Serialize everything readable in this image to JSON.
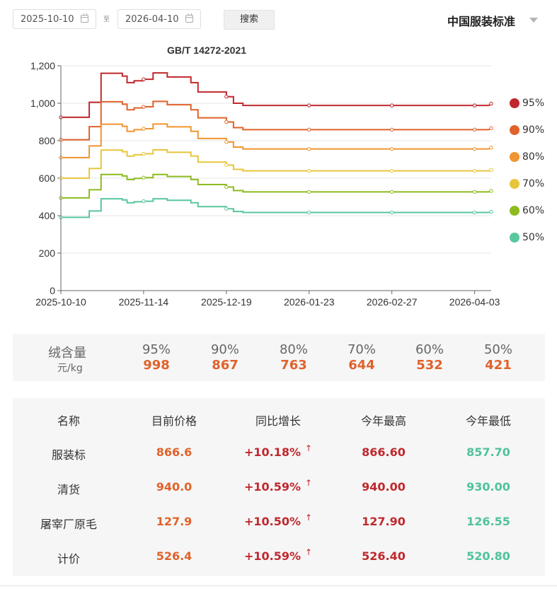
{
  "toolbar": {
    "start_date": "2025-10-10",
    "end_date": "2026-04-10",
    "separator": "至",
    "search_label": "搜索",
    "standard_select": "中国服装标准"
  },
  "chart_data": {
    "type": "line",
    "title": "GB/T 14272-2021",
    "x_tick_labels": [
      "2025-10-10",
      "2025-11-14",
      "2025-12-19",
      "2026-01-23",
      "2026-02-27",
      "2026-04-03"
    ],
    "x_range": [
      "2025-10-10",
      "2026-04-10"
    ],
    "y_tick_labels": [
      "0",
      "200",
      "400",
      "600",
      "800",
      "1,000",
      "1,200"
    ],
    "ylim": [
      0,
      1200
    ],
    "legend_position": "right",
    "grid": true,
    "series": [
      {
        "name": "95%",
        "color": "#c0282d",
        "points": [
          [
            "2025-10-10",
            925
          ],
          [
            "2025-10-22",
            925
          ],
          [
            "2025-10-22",
            1005
          ],
          [
            "2025-10-27",
            1005
          ],
          [
            "2025-10-27",
            1160
          ],
          [
            "2025-11-05",
            1160
          ],
          [
            "2025-11-05",
            1145
          ],
          [
            "2025-11-07",
            1145
          ],
          [
            "2025-11-07",
            1110
          ],
          [
            "2025-11-10",
            1110
          ],
          [
            "2025-11-10",
            1120
          ],
          [
            "2025-11-14",
            1120
          ],
          [
            "2025-11-14",
            1128
          ],
          [
            "2025-11-18",
            1128
          ],
          [
            "2025-11-18",
            1162
          ],
          [
            "2025-11-24",
            1162
          ],
          [
            "2025-11-24",
            1140
          ],
          [
            "2025-12-04",
            1140
          ],
          [
            "2025-12-04",
            1110
          ],
          [
            "2025-12-07",
            1110
          ],
          [
            "2025-12-07",
            1060
          ],
          [
            "2025-12-19",
            1060
          ],
          [
            "2025-12-19",
            1035
          ],
          [
            "2025-12-22",
            1035
          ],
          [
            "2025-12-22",
            1000
          ],
          [
            "2025-12-26",
            1000
          ],
          [
            "2025-12-26",
            988
          ],
          [
            "2026-04-09",
            988
          ],
          [
            "2026-04-10",
            998
          ]
        ]
      },
      {
        "name": "90%",
        "color": "#e0622b",
        "points": [
          [
            "2025-10-10",
            805
          ],
          [
            "2025-10-22",
            805
          ],
          [
            "2025-10-22",
            875
          ],
          [
            "2025-10-27",
            875
          ],
          [
            "2025-10-27",
            1008
          ],
          [
            "2025-11-05",
            1008
          ],
          [
            "2025-11-05",
            995
          ],
          [
            "2025-11-07",
            995
          ],
          [
            "2025-11-07",
            965
          ],
          [
            "2025-11-10",
            965
          ],
          [
            "2025-11-10",
            975
          ],
          [
            "2025-11-14",
            975
          ],
          [
            "2025-11-14",
            981
          ],
          [
            "2025-11-18",
            981
          ],
          [
            "2025-11-18",
            1010
          ],
          [
            "2025-11-24",
            1010
          ],
          [
            "2025-11-24",
            992
          ],
          [
            "2025-12-04",
            992
          ],
          [
            "2025-12-04",
            965
          ],
          [
            "2025-12-07",
            965
          ],
          [
            "2025-12-07",
            922
          ],
          [
            "2025-12-19",
            922
          ],
          [
            "2025-12-19",
            900
          ],
          [
            "2025-12-22",
            900
          ],
          [
            "2025-12-22",
            870
          ],
          [
            "2025-12-26",
            870
          ],
          [
            "2025-12-26",
            859
          ],
          [
            "2026-04-09",
            859
          ],
          [
            "2026-04-10",
            867
          ]
        ]
      },
      {
        "name": "80%",
        "color": "#f0952f",
        "points": [
          [
            "2025-10-10",
            710
          ],
          [
            "2025-10-22",
            710
          ],
          [
            "2025-10-22",
            772
          ],
          [
            "2025-10-27",
            772
          ],
          [
            "2025-10-27",
            888
          ],
          [
            "2025-11-05",
            888
          ],
          [
            "2025-11-05",
            877
          ],
          [
            "2025-11-07",
            877
          ],
          [
            "2025-11-07",
            850
          ],
          [
            "2025-11-10",
            850
          ],
          [
            "2025-11-10",
            859
          ],
          [
            "2025-11-14",
            859
          ],
          [
            "2025-11-14",
            864
          ],
          [
            "2025-11-18",
            864
          ],
          [
            "2025-11-18",
            889
          ],
          [
            "2025-11-24",
            889
          ],
          [
            "2025-11-24",
            874
          ],
          [
            "2025-12-04",
            874
          ],
          [
            "2025-12-04",
            850
          ],
          [
            "2025-12-07",
            850
          ],
          [
            "2025-12-07",
            812
          ],
          [
            "2025-12-19",
            812
          ],
          [
            "2025-12-19",
            793
          ],
          [
            "2025-12-22",
            793
          ],
          [
            "2025-12-22",
            766
          ],
          [
            "2025-12-26",
            766
          ],
          [
            "2025-12-26",
            756
          ],
          [
            "2026-04-09",
            756
          ],
          [
            "2026-04-10",
            763
          ]
        ]
      },
      {
        "name": "70%",
        "color": "#e8c53a",
        "points": [
          [
            "2025-10-10",
            600
          ],
          [
            "2025-10-22",
            600
          ],
          [
            "2025-10-22",
            652
          ],
          [
            "2025-10-27",
            652
          ],
          [
            "2025-10-27",
            750
          ],
          [
            "2025-11-05",
            750
          ],
          [
            "2025-11-05",
            741
          ],
          [
            "2025-11-07",
            741
          ],
          [
            "2025-11-07",
            718
          ],
          [
            "2025-11-10",
            718
          ],
          [
            "2025-11-10",
            725
          ],
          [
            "2025-11-14",
            725
          ],
          [
            "2025-11-14",
            730
          ],
          [
            "2025-11-18",
            730
          ],
          [
            "2025-11-18",
            751
          ],
          [
            "2025-11-24",
            751
          ],
          [
            "2025-11-24",
            738
          ],
          [
            "2025-12-04",
            738
          ],
          [
            "2025-12-04",
            718
          ],
          [
            "2025-12-07",
            718
          ],
          [
            "2025-12-07",
            686
          ],
          [
            "2025-12-19",
            686
          ],
          [
            "2025-12-19",
            670
          ],
          [
            "2025-12-22",
            670
          ],
          [
            "2025-12-22",
            647
          ],
          [
            "2025-12-26",
            647
          ],
          [
            "2025-12-26",
            639
          ],
          [
            "2026-04-09",
            639
          ],
          [
            "2026-04-10",
            644
          ]
        ]
      },
      {
        "name": "60%",
        "color": "#8dbb1f",
        "points": [
          [
            "2025-10-10",
            495
          ],
          [
            "2025-10-22",
            495
          ],
          [
            "2025-10-22",
            538
          ],
          [
            "2025-10-27",
            538
          ],
          [
            "2025-10-27",
            620
          ],
          [
            "2025-11-05",
            620
          ],
          [
            "2025-11-05",
            612
          ],
          [
            "2025-11-07",
            612
          ],
          [
            "2025-11-07",
            593
          ],
          [
            "2025-11-10",
            593
          ],
          [
            "2025-11-10",
            599
          ],
          [
            "2025-11-14",
            599
          ],
          [
            "2025-11-14",
            603
          ],
          [
            "2025-11-18",
            603
          ],
          [
            "2025-11-18",
            620
          ],
          [
            "2025-11-24",
            620
          ],
          [
            "2025-11-24",
            609
          ],
          [
            "2025-12-04",
            609
          ],
          [
            "2025-12-04",
            593
          ],
          [
            "2025-12-07",
            593
          ],
          [
            "2025-12-07",
            566
          ],
          [
            "2025-12-19",
            566
          ],
          [
            "2025-12-19",
            553
          ],
          [
            "2025-12-22",
            553
          ],
          [
            "2025-12-22",
            534
          ],
          [
            "2025-12-26",
            534
          ],
          [
            "2025-12-26",
            527
          ],
          [
            "2026-04-09",
            527
          ],
          [
            "2026-04-10",
            532
          ]
        ]
      },
      {
        "name": "50%",
        "color": "#58c79c",
        "points": [
          [
            "2025-10-10",
            391
          ],
          [
            "2025-10-22",
            391
          ],
          [
            "2025-10-22",
            425
          ],
          [
            "2025-10-27",
            425
          ],
          [
            "2025-10-27",
            490
          ],
          [
            "2025-11-05",
            490
          ],
          [
            "2025-11-05",
            484
          ],
          [
            "2025-11-07",
            484
          ],
          [
            "2025-11-07",
            469
          ],
          [
            "2025-11-10",
            469
          ],
          [
            "2025-11-10",
            474
          ],
          [
            "2025-11-14",
            474
          ],
          [
            "2025-11-14",
            477
          ],
          [
            "2025-11-18",
            477
          ],
          [
            "2025-11-18",
            490
          ],
          [
            "2025-11-24",
            490
          ],
          [
            "2025-11-24",
            482
          ],
          [
            "2025-12-04",
            482
          ],
          [
            "2025-12-04",
            469
          ],
          [
            "2025-12-07",
            469
          ],
          [
            "2025-12-07",
            448
          ],
          [
            "2025-12-19",
            448
          ],
          [
            "2025-12-19",
            437
          ],
          [
            "2025-12-22",
            437
          ],
          [
            "2025-12-22",
            422
          ],
          [
            "2025-12-26",
            422
          ],
          [
            "2025-12-26",
            417
          ],
          [
            "2026-04-09",
            417
          ],
          [
            "2026-04-10",
            421
          ]
        ]
      }
    ],
    "markers": [
      "2025-10-10",
      "2025-11-14",
      "2025-12-19",
      "2026-01-23",
      "2026-02-27",
      "2026-04-03"
    ]
  },
  "summary": {
    "title": "绒含量",
    "unit": "元/kg",
    "columns": [
      {
        "pct": "95%",
        "value": "998"
      },
      {
        "pct": "90%",
        "value": "867"
      },
      {
        "pct": "80%",
        "value": "763"
      },
      {
        "pct": "70%",
        "value": "644"
      },
      {
        "pct": "60%",
        "value": "532"
      },
      {
        "pct": "50%",
        "value": "421"
      }
    ]
  },
  "price_table": {
    "headers": [
      "名称",
      "目前价格",
      "同比增长",
      "今年最高",
      "今年最低"
    ],
    "arrow": "↑",
    "rows": [
      {
        "name": "服装标",
        "price": "866.6",
        "growth": "+10.18%",
        "high": "866.60",
        "low": "857.70"
      },
      {
        "name": "清货",
        "price": "940.0",
        "growth": "+10.59%",
        "high": "940.00",
        "low": "930.00"
      },
      {
        "name": "屠宰厂原毛",
        "price": "127.9",
        "growth": "+10.50%",
        "high": "127.90",
        "low": "126.55"
      },
      {
        "name": "计价",
        "price": "526.4",
        "growth": "+10.59%",
        "high": "526.40",
        "low": "520.80"
      }
    ]
  }
}
